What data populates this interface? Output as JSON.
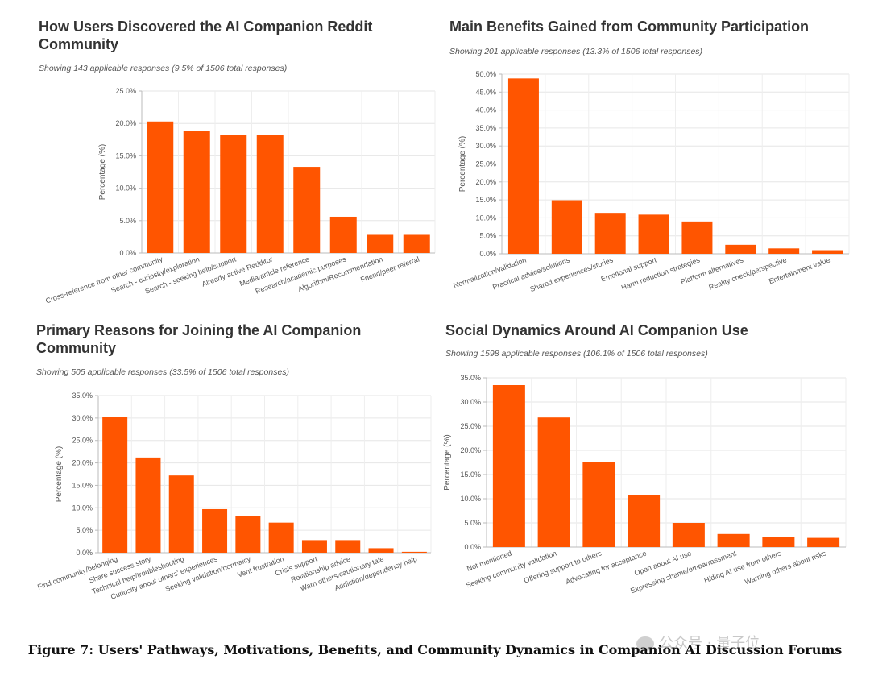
{
  "charts": [
    {
      "title": "How Users Discovered the AI Companion Reddit Community",
      "subtitle": "Showing 143 applicable responses (9.5% of 1506 total responses)",
      "ylabel": "Percentage (%)"
    },
    {
      "title": "Main Benefits Gained from Community Participation",
      "subtitle": "Showing 201 applicable responses (13.3% of 1506 total responses)",
      "ylabel": "Percentage (%)"
    },
    {
      "title": "Primary Reasons for Joining the AI Companion Community",
      "subtitle": "Showing 505 applicable responses (33.5% of 1506 total responses)",
      "ylabel": "Percentage (%)"
    },
    {
      "title": "Social Dynamics Around AI Companion Use",
      "subtitle": "Showing 1598 applicable responses (106.1% of 1506 total responses)",
      "ylabel": "Percentage (%)"
    }
  ],
  "chart_data": [
    {
      "type": "bar",
      "title": "How Users Discovered the AI Companion Reddit Community",
      "ylabel": "Percentage (%)",
      "ylim": [
        0,
        25
      ],
      "yticks": [
        "0.0%",
        "5.0%",
        "10.0%",
        "15.0%",
        "20.0%",
        "25.0%"
      ],
      "categories": [
        "Cross-reference from other community",
        "Search - curiosity/exploration",
        "Search - seeking help/support",
        "Already active Redditor",
        "Media/article reference",
        "Research/academic purposes",
        "Algorithm/Recommendation",
        "Friend/peer referral"
      ],
      "values": [
        20.3,
        18.9,
        18.2,
        18.2,
        13.3,
        5.6,
        2.8,
        2.8
      ],
      "grid": true,
      "color": "#FF5500"
    },
    {
      "type": "bar",
      "title": "Main Benefits Gained from Community Participation",
      "ylabel": "Percentage (%)",
      "ylim": [
        0,
        50
      ],
      "yticks": [
        "0.0%",
        "5.0%",
        "10.0%",
        "15.0%",
        "20.0%",
        "25.0%",
        "30.0%",
        "35.0%",
        "40.0%",
        "45.0%",
        "50.0%"
      ],
      "categories": [
        "Normalization/validation",
        "Practical advice/solutions",
        "Shared experiences/stories",
        "Emotional support",
        "Harm reduction strategies",
        "Platform alternatives",
        "Reality check/perspective",
        "Entertainment value"
      ],
      "values": [
        48.8,
        14.9,
        11.4,
        10.9,
        9.0,
        2.5,
        1.5,
        1.0
      ],
      "grid": true,
      "color": "#FF5500"
    },
    {
      "type": "bar",
      "title": "Primary Reasons for Joining the AI Companion Community",
      "ylabel": "Percentage (%)",
      "ylim": [
        0,
        35
      ],
      "yticks": [
        "0.0%",
        "5.0%",
        "10.0%",
        "15.0%",
        "20.0%",
        "25.0%",
        "30.0%",
        "35.0%"
      ],
      "categories": [
        "Find community/belonging",
        "Share success story",
        "Technical help/troubleshooting",
        "Curiosity about others' experiences",
        "Seeking validation/normalcy",
        "Vent frustration",
        "Crisis support",
        "Relationship advice",
        "Warn others/cautionary tale",
        "Addiction/dependency help"
      ],
      "values": [
        30.3,
        21.2,
        17.2,
        9.7,
        8.1,
        6.7,
        2.8,
        2.8,
        1.0,
        0.2
      ],
      "grid": true,
      "color": "#FF5500"
    },
    {
      "type": "bar",
      "title": "Social Dynamics Around AI Companion Use",
      "ylabel": "Percentage (%)",
      "ylim": [
        0,
        35
      ],
      "yticks": [
        "0.0%",
        "5.0%",
        "10.0%",
        "15.0%",
        "20.0%",
        "25.0%",
        "30.0%",
        "35.0%"
      ],
      "categories": [
        "Not mentioned",
        "Seeking community validation",
        "Offering support to others",
        "Advocating for acceptance",
        "Open about AI use",
        "Expressing shame/embarrassment",
        "Hiding AI use from others",
        "Warning others about risks"
      ],
      "values": [
        33.5,
        26.8,
        17.5,
        10.7,
        5.0,
        2.7,
        2.0,
        1.9
      ],
      "grid": true,
      "color": "#FF5500"
    }
  ],
  "caption": "Figure 7: Users' Pathways, Motivations, Benefits, and Community Dynamics in Companion AI Discussion Forums",
  "watermark": "公众号 · 量子位"
}
